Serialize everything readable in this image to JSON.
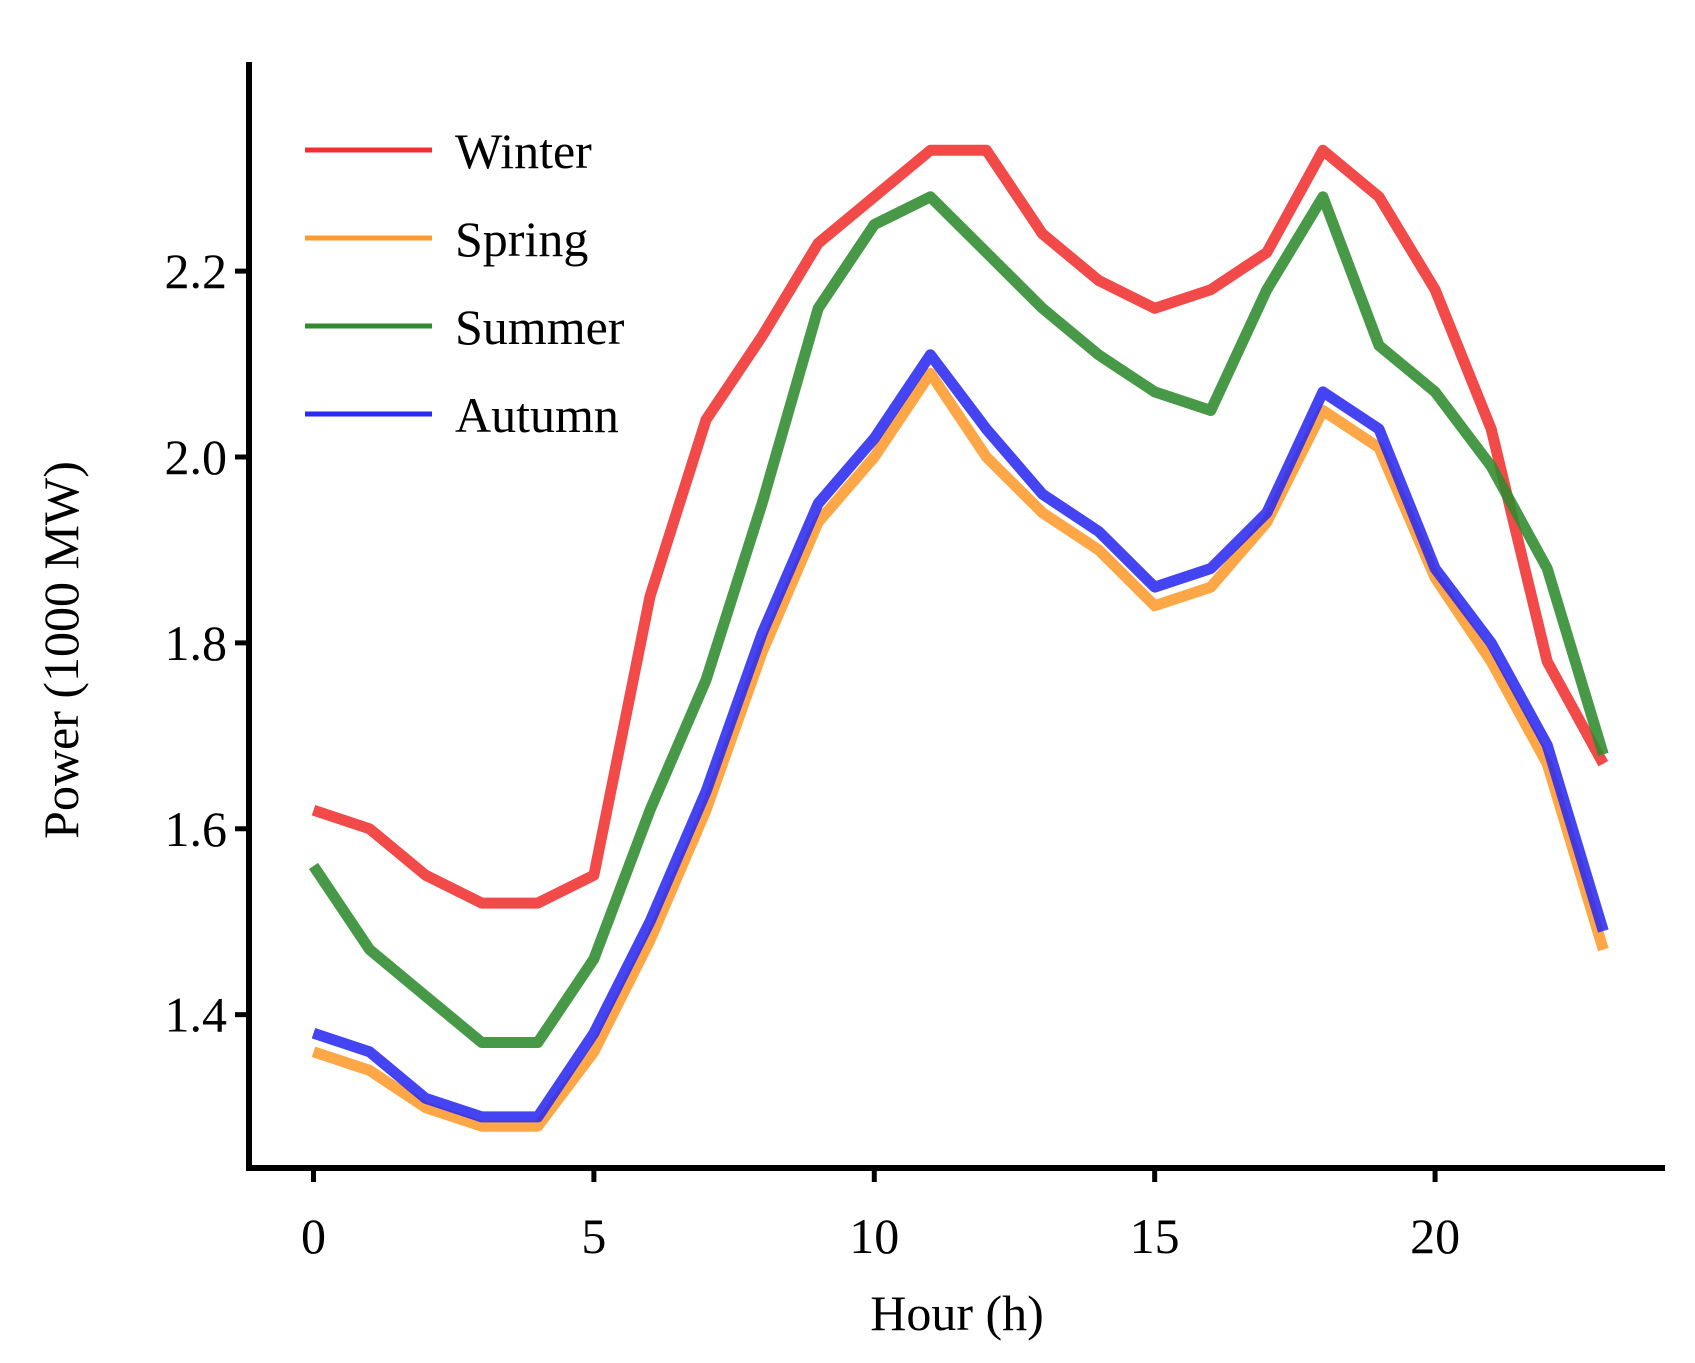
{
  "chart_data": {
    "type": "line",
    "title": "",
    "xlabel": "Hour (h)",
    "ylabel": "Power (1000 MW)",
    "xlim": [
      -1.15,
      24.1
    ],
    "ylim": [
      1.235,
      2.425
    ],
    "xticks": [
      0,
      5,
      10,
      15,
      20
    ],
    "xtick_labels": [
      "0",
      "5",
      "10",
      "15",
      "20"
    ],
    "yticks": [
      1.4,
      1.6,
      1.8,
      2.0,
      2.2
    ],
    "ytick_labels": [
      "1.4",
      "1.6",
      "1.8",
      "2.0",
      "2.2"
    ],
    "grid": false,
    "legend_position": "top-left",
    "x": [
      0,
      1,
      2,
      3,
      4,
      5,
      6,
      7,
      8,
      9,
      10,
      11,
      12,
      13,
      14,
      15,
      16,
      17,
      18,
      19,
      20,
      21,
      22,
      23
    ],
    "series": [
      {
        "name": "Winter",
        "color": "#f03030",
        "values": [
          1.62,
          1.6,
          1.55,
          1.52,
          1.52,
          1.55,
          1.85,
          2.04,
          2.13,
          2.23,
          2.28,
          2.33,
          2.33,
          2.24,
          2.19,
          2.16,
          2.18,
          2.22,
          2.33,
          2.28,
          2.18,
          2.03,
          1.78,
          1.67
        ]
      },
      {
        "name": "Spring",
        "color": "#ff9a2e",
        "values": [
          1.36,
          1.34,
          1.3,
          1.28,
          1.28,
          1.36,
          1.48,
          1.62,
          1.79,
          1.93,
          2.0,
          2.09,
          2.0,
          1.94,
          1.9,
          1.84,
          1.86,
          1.93,
          2.05,
          2.01,
          1.87,
          1.78,
          1.67,
          1.47
        ]
      },
      {
        "name": "Summer",
        "color": "#2e8b2e",
        "values": [
          1.56,
          1.47,
          1.42,
          1.37,
          1.37,
          1.46,
          1.62,
          1.76,
          1.95,
          2.16,
          2.25,
          2.28,
          2.22,
          2.16,
          2.11,
          2.07,
          2.05,
          2.18,
          2.28,
          2.12,
          2.07,
          1.99,
          1.88,
          1.68
        ]
      },
      {
        "name": "Autumn",
        "color": "#2a2af0",
        "values": [
          1.38,
          1.36,
          1.31,
          1.29,
          1.29,
          1.38,
          1.5,
          1.64,
          1.81,
          1.95,
          2.02,
          2.11,
          2.03,
          1.96,
          1.92,
          1.86,
          1.88,
          1.94,
          2.07,
          2.03,
          1.88,
          1.8,
          1.69,
          1.49
        ]
      }
    ]
  }
}
